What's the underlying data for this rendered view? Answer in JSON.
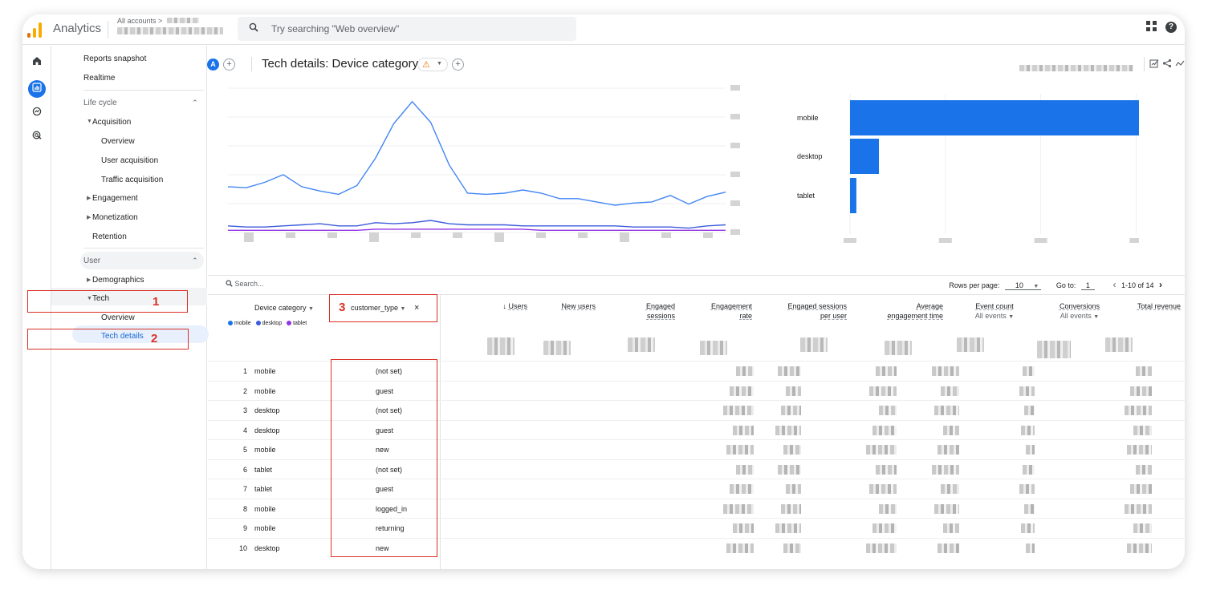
{
  "app": {
    "brand": "Analytics",
    "accounts_label": "All accounts >",
    "search_placeholder": "Try searching \"Web overview\"",
    "help_glyph": "?"
  },
  "nav": {
    "items": [
      {
        "label": "Reports snapshot"
      },
      {
        "label": "Realtime"
      },
      {
        "label": "Life cycle"
      },
      {
        "label": "Acquisition"
      },
      {
        "label": "Overview"
      },
      {
        "label": "User acquisition"
      },
      {
        "label": "Traffic acquisition"
      },
      {
        "label": "Engagement"
      },
      {
        "label": "Monetization"
      },
      {
        "label": "Retention"
      },
      {
        "label": "User"
      },
      {
        "label": "Demographics"
      },
      {
        "label": "Tech"
      },
      {
        "label": "Overview"
      },
      {
        "label": "Tech details"
      }
    ]
  },
  "annotations": {
    "n1": "1",
    "n2": "2",
    "n3": "3"
  },
  "page": {
    "avatar": "A",
    "title": "Tech details: Device category",
    "warn_glyph": "⚠"
  },
  "chart_data": [
    {
      "type": "line",
      "series": [
        {
          "name": "mobile",
          "color": "#4285f4",
          "values": [
            42,
            41,
            46,
            53,
            42,
            38,
            35,
            43,
            68,
            100,
            120,
            101,
            62,
            36,
            35,
            36,
            39,
            36,
            31,
            31,
            28,
            25,
            27,
            28,
            34,
            26,
            33,
            37
          ]
        },
        {
          "name": "desktop",
          "color": "#3b5bdb",
          "values": [
            6,
            5,
            5,
            6,
            7,
            8,
            6,
            6,
            9,
            8,
            9,
            11,
            8,
            7,
            7,
            7,
            6,
            6,
            6,
            6,
            6,
            6,
            5,
            5,
            5,
            4,
            6,
            7
          ]
        },
        {
          "name": "tablet",
          "color": "#9334e6",
          "values": [
            2,
            2,
            2,
            2,
            2,
            2,
            2,
            2,
            3,
            3,
            3,
            3,
            3,
            3,
            3,
            3,
            3,
            2,
            2,
            2,
            2,
            2,
            2,
            2,
            2,
            2,
            2,
            2
          ]
        }
      ]
    },
    {
      "type": "bar",
      "categories": [
        "mobile",
        "desktop",
        "tablet"
      ],
      "values": [
        100,
        10,
        2.2
      ]
    }
  ],
  "table": {
    "search_placeholder": "Search...",
    "rows_per_page_label": "Rows per page:",
    "rows_per_page": "10",
    "goto_label": "Go to:",
    "goto_value": "1",
    "range": "1-10 of 14",
    "dim1": "Device category",
    "dim2": "customer_type",
    "columns": [
      {
        "l1": "Users",
        "l2": ""
      },
      {
        "l1": "New users",
        "l2": ""
      },
      {
        "l1": "Engaged",
        "l2": "sessions"
      },
      {
        "l1": "Engagement",
        "l2": "rate"
      },
      {
        "l1": "Engaged sessions",
        "l2": "per user"
      },
      {
        "l1": "Average",
        "l2": "engagement time"
      },
      {
        "l1": "Event count",
        "l2": "All events"
      },
      {
        "l1": "Conversions",
        "l2": "All events"
      },
      {
        "l1": "Total revenue",
        "l2": ""
      }
    ],
    "rows": [
      {
        "i": "1",
        "dc": "mobile",
        "ct": "(not set)"
      },
      {
        "i": "2",
        "dc": "mobile",
        "ct": "guest"
      },
      {
        "i": "3",
        "dc": "desktop",
        "ct": "(not set)"
      },
      {
        "i": "4",
        "dc": "desktop",
        "ct": "guest"
      },
      {
        "i": "5",
        "dc": "mobile",
        "ct": "new"
      },
      {
        "i": "6",
        "dc": "tablet",
        "ct": "(not set)"
      },
      {
        "i": "7",
        "dc": "tablet",
        "ct": "guest"
      },
      {
        "i": "8",
        "dc": "mobile",
        "ct": "logged_in"
      },
      {
        "i": "9",
        "dc": "mobile",
        "ct": "returning"
      },
      {
        "i": "10",
        "dc": "desktop",
        "ct": "new"
      }
    ]
  }
}
